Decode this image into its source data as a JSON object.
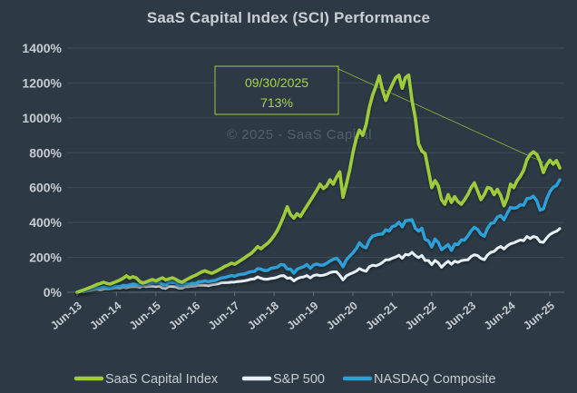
{
  "window": {
    "background_color": "#2d3a46",
    "text_color": "#c6ccd1"
  },
  "chart": {
    "title": "SaaS Capital Index (SCI) Performance",
    "watermark": "© 2025 - SaaS Capital",
    "annotation": {
      "date": "09/30/2025",
      "value": "713%"
    }
  },
  "chart_data": {
    "type": "line",
    "title": "SaaS Capital Index (SCI) Performance",
    "x_interval": "monthly",
    "x_start": "Jun-2013",
    "x_end": "Sep-2025",
    "x_tick_labels": [
      "Jun-13",
      "Jun-14",
      "Jun-15",
      "Jun-16",
      "Jun-17",
      "Jun-18",
      "Jun-19",
      "Jun-20",
      "Jun-21",
      "Jun-22",
      "Jun-23",
      "Jun-24",
      "Jun-25"
    ],
    "y_ticks": [
      0,
      200,
      400,
      600,
      800,
      1000,
      1200,
      1400
    ],
    "y_unit": "%",
    "ylim": [
      0,
      1400
    ],
    "grid": "horizontal-only",
    "legend_position": "bottom",
    "colors": {
      "background": "#2d3a46",
      "gridline": "#3e4b58",
      "axis": "#616e7a",
      "annotation_green": "#9fca3a"
    },
    "annotation": {
      "label_date": "09/30/2025",
      "label_value": "713%",
      "points_to": {
        "x": "Sep-25",
        "y": 713,
        "series": "SaaS Capital Index"
      }
    },
    "series": [
      {
        "name": "SaaS Capital Index",
        "color": "#9fca3a",
        "stroke_width": 3.6,
        "values": [
          0,
          6,
          13,
          21,
          28,
          36,
          44,
          50,
          57,
          51,
          47,
          54,
          62,
          70,
          80,
          94,
          81,
          89,
          83,
          63,
          53,
          59,
          67,
          73,
          65,
          75,
          83,
          71,
          77,
          83,
          75,
          63,
          57,
          69,
          79,
          89,
          97,
          107,
          117,
          123,
          115,
          109,
          117,
          127,
          137,
          149,
          156,
          167,
          161,
          173,
          185,
          197,
          211,
          223,
          241,
          262,
          250,
          266,
          280,
          300,
          325,
          355,
          395,
          440,
          490,
          445,
          425,
          450,
          435,
          465,
          495,
          525,
          555,
          585,
          620,
          595,
          610,
          645,
          620,
          660,
          690,
          545,
          620,
          700,
          800,
          880,
          930,
          900,
          960,
          1060,
          1130,
          1180,
          1240,
          1160,
          1100,
          1150,
          1190,
          1230,
          1245,
          1170,
          1230,
          1245,
          1100,
          1000,
          850,
          810,
          795,
          700,
          600,
          640,
          610,
          531,
          505,
          560,
          515,
          548,
          520,
          505,
          530,
          560,
          600,
          627,
          580,
          531,
          560,
          601,
          595,
          560,
          590,
          555,
          496,
          540,
          620,
          600,
          640,
          665,
          700,
          760,
          790,
          805,
          790,
          750,
          687,
          730,
          757,
          735,
          755,
          713
        ]
      },
      {
        "name": "S&P 500",
        "color": "#e8f0f7",
        "stroke_width": 3.0,
        "values": [
          0,
          6,
          2,
          6,
          10,
          14,
          17,
          13,
          18,
          19,
          20,
          23,
          26,
          23,
          29,
          26,
          30,
          33,
          33,
          28,
          36,
          33,
          35,
          36,
          33,
          36,
          26,
          23,
          34,
          34,
          32,
          24,
          24,
          33,
          33,
          36,
          36,
          41,
          41,
          41,
          38,
          43,
          46,
          49,
          55,
          55,
          56,
          58,
          59,
          62,
          63,
          66,
          70,
          75,
          77,
          88,
          80,
          75,
          75,
          79,
          81,
          87,
          94,
          95,
          80,
          83,
          65,
          78,
          85,
          88,
          96,
          82,
          96,
          100,
          95,
          98,
          103,
          113,
          117,
          117,
          97,
          71,
          94,
          104,
          112,
          121,
          136,
          126,
          121,
          146,
          155,
          152,
          159,
          171,
          186,
          187,
          195,
          202,
          212,
          195,
          217,
          214,
          229,
          210,
          199,
          211,
          182,
          182,
          158,
          182,
          169,
          143,
          163,
          178,
          161,
          178,
          171,
          181,
          185,
          186,
          205,
          215,
          210,
          194,
          187,
          214,
          229,
          234,
          252,
          263,
          248,
          266,
          278,
          283,
          292,
          300,
          296,
          320,
          308,
          320,
          314,
          289,
          286,
          311,
          331,
          342,
          350,
          365
        ]
      },
      {
        "name": "NASDAQ Composite",
        "color": "#2da0d8",
        "stroke_width": 3.4,
        "values": [
          0,
          8,
          6,
          12,
          17,
          22,
          25,
          24,
          31,
          27,
          24,
          29,
          35,
          32,
          40,
          37,
          42,
          47,
          45,
          42,
          53,
          51,
          52,
          57,
          54,
          59,
          46,
          42,
          57,
          58,
          54,
          42,
          39,
          50,
          46,
          52,
          49,
          60,
          61,
          65,
          60,
          65,
          67,
          75,
          82,
          85,
          90,
          95,
          92,
          100,
          103,
          105,
          113,
          118,
          119,
          136,
          132,
          125,
          125,
          137,
          140,
          144,
          159,
          157,
          133,
          133,
          110,
          132,
          140,
          147,
          159,
          137,
          156,
          162,
          155,
          156,
          166,
          179,
          189,
          195,
          176,
          146,
          186,
          207,
          226,
          250,
          284,
          263,
          255,
          298,
          322,
          328,
          333,
          334,
          358,
          351,
          377,
          382,
          402,
          375,
          410,
          412,
          416,
          367,
          351,
          367,
          303,
          295,
          259,
          305,
          285,
          244,
          258,
          274,
          240,
          277,
          274,
          299,
          299,
          323,
          352,
          372,
          360,
          333,
          321,
          367,
          394,
          400,
          431,
          440,
          416,
          453,
          486,
          482,
          486,
          502,
          499,
          537,
          539,
          551,
          524,
          471,
          477,
          534,
          576,
          602,
          612,
          645
        ]
      }
    ]
  },
  "legend": {
    "items": [
      {
        "label": "SaaS Capital Index"
      },
      {
        "label": "S&P 500"
      },
      {
        "label": "NASDAQ Composite"
      }
    ]
  }
}
